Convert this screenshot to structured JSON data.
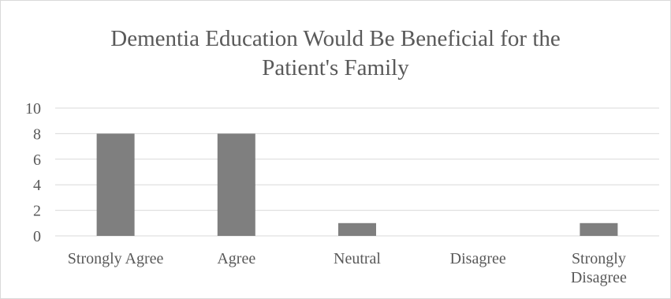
{
  "chart_data": {
    "type": "bar",
    "title": "Dementia Education Would Be Beneficial for the Patient's Family",
    "title_lines": [
      "Dementia Education Would Be Beneficial for the",
      "Patient's Family"
    ],
    "categories": [
      "Strongly Agree",
      "Agree",
      "Neutral",
      "Disagree",
      "Strongly Disagree"
    ],
    "category_label_lines": [
      [
        "Strongly Agree"
      ],
      [
        "Agree"
      ],
      [
        "Neutral"
      ],
      [
        "Disagree"
      ],
      [
        "Strongly",
        "Disagree"
      ]
    ],
    "values": [
      8,
      8,
      1,
      0,
      1
    ],
    "ylim": [
      0,
      10
    ],
    "yticks": [
      0,
      2,
      4,
      6,
      8,
      10
    ],
    "xlabel": "",
    "ylabel": "",
    "grid": true,
    "legend": "none",
    "colors": {
      "bar": "#7f7f7f",
      "gridline": "#d9d9d9",
      "text": "#595959"
    }
  }
}
